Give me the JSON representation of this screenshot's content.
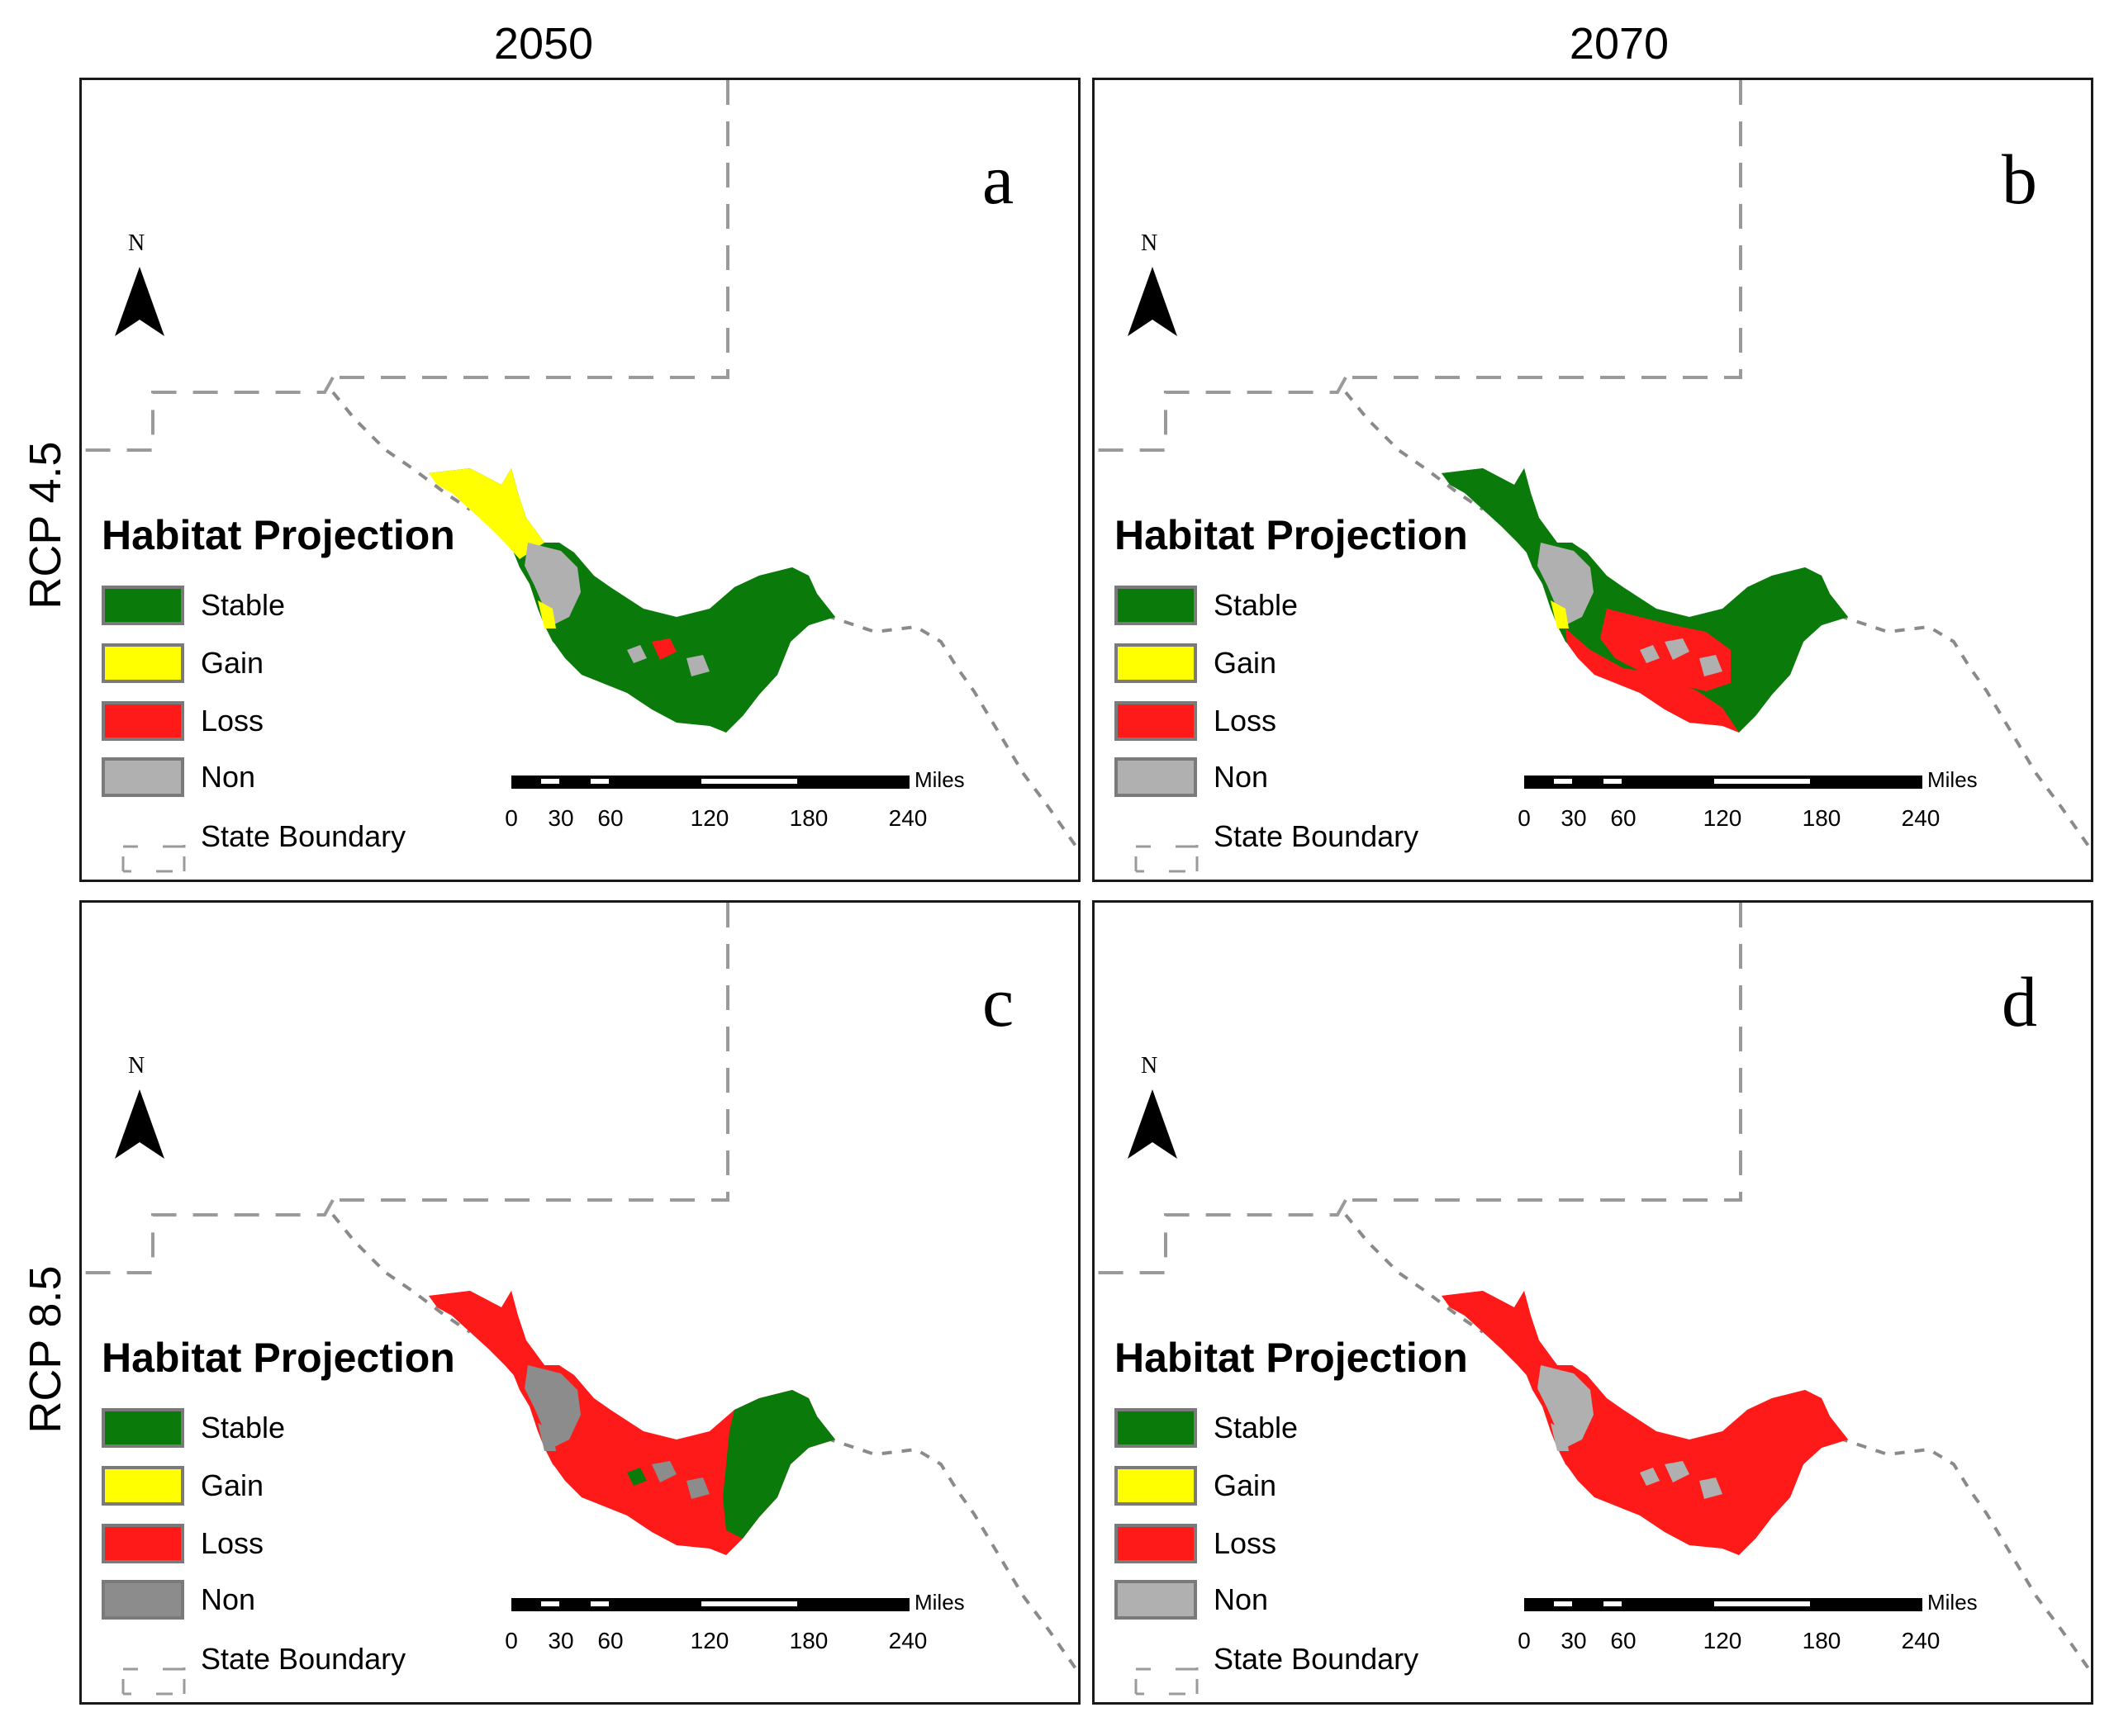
{
  "columns": [
    "2050",
    "2070"
  ],
  "rows": [
    "RCP 4.5",
    "RCP 8.5"
  ],
  "north_label": "N",
  "legend": {
    "title": "Habitat Projection",
    "items": [
      {
        "label": "Stable",
        "color": "#0a7a0a"
      },
      {
        "label": "Gain",
        "color": "#ffff00"
      },
      {
        "label": "Loss",
        "color": "#ff1a1a"
      },
      {
        "label": "Non",
        "color": "#b0b0b0"
      }
    ],
    "boundary_label": "State Boundary"
  },
  "scale_bar": {
    "unit": "Miles",
    "ticks": [
      "0",
      "30",
      "60",
      "120",
      "180",
      "240"
    ]
  },
  "panels": [
    {
      "letter": "a",
      "column": "2050",
      "row": "RCP 4.5",
      "non_color": "#b0b0b0"
    },
    {
      "letter": "b",
      "column": "2070",
      "row": "RCP 4.5",
      "non_color": "#b0b0b0"
    },
    {
      "letter": "c",
      "column": "2050",
      "row": "RCP 8.5",
      "non_color": "#8c8c8c"
    },
    {
      "letter": "d",
      "column": "2070",
      "row": "RCP 8.5",
      "non_color": "#b0b0b0"
    }
  ]
}
